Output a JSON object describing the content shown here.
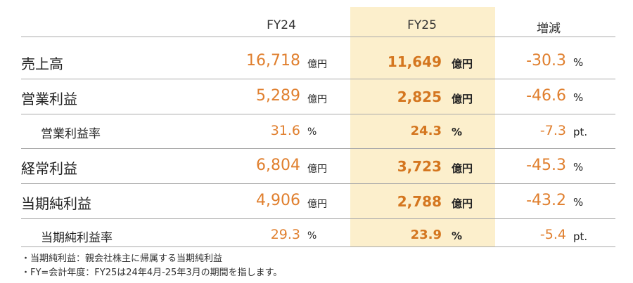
{
  "headers": {
    "fy24": "FY24",
    "fy25": "FY25",
    "change": "増減"
  },
  "rows": [
    {
      "label": "売上高",
      "fy24": "16,718",
      "fy24_unit": "億円",
      "fy25": "11,649",
      "fy25_unit": "億円",
      "change": "-30.3",
      "change_unit": "%"
    },
    {
      "label": "営業利益",
      "fy24": "5,289",
      "fy24_unit": "億円",
      "fy25": "2,825",
      "fy25_unit": "億円",
      "change": "-46.6",
      "change_unit": "%"
    },
    {
      "label": "営業利益率",
      "fy24": "31.6",
      "fy24_unit": "%",
      "fy25": "24.3",
      "fy25_unit": "%",
      "change": "-7.3",
      "change_unit": "pt."
    },
    {
      "label": "経常利益",
      "fy24": "6,804",
      "fy24_unit": "億円",
      "fy25": "3,723",
      "fy25_unit": "億円",
      "change": "-45.3",
      "change_unit": "%"
    },
    {
      "label": "当期純利益",
      "fy24": "4,906",
      "fy24_unit": "億円",
      "fy25": "2,788",
      "fy25_unit": "億円",
      "change": "-43.2",
      "change_unit": "%"
    },
    {
      "label": "当期純利益率",
      "fy24": "29.3",
      "fy24_unit": "%",
      "fy25": "23.9",
      "fy25_unit": "%",
      "change": "-5.4",
      "change_unit": "pt."
    }
  ],
  "notes": [
    "・当期純利益：親会社株主に帰属する当期純利益",
    "・FY=会計年度：FY25は24年4月-25年3月の期間を指します。"
  ]
}
